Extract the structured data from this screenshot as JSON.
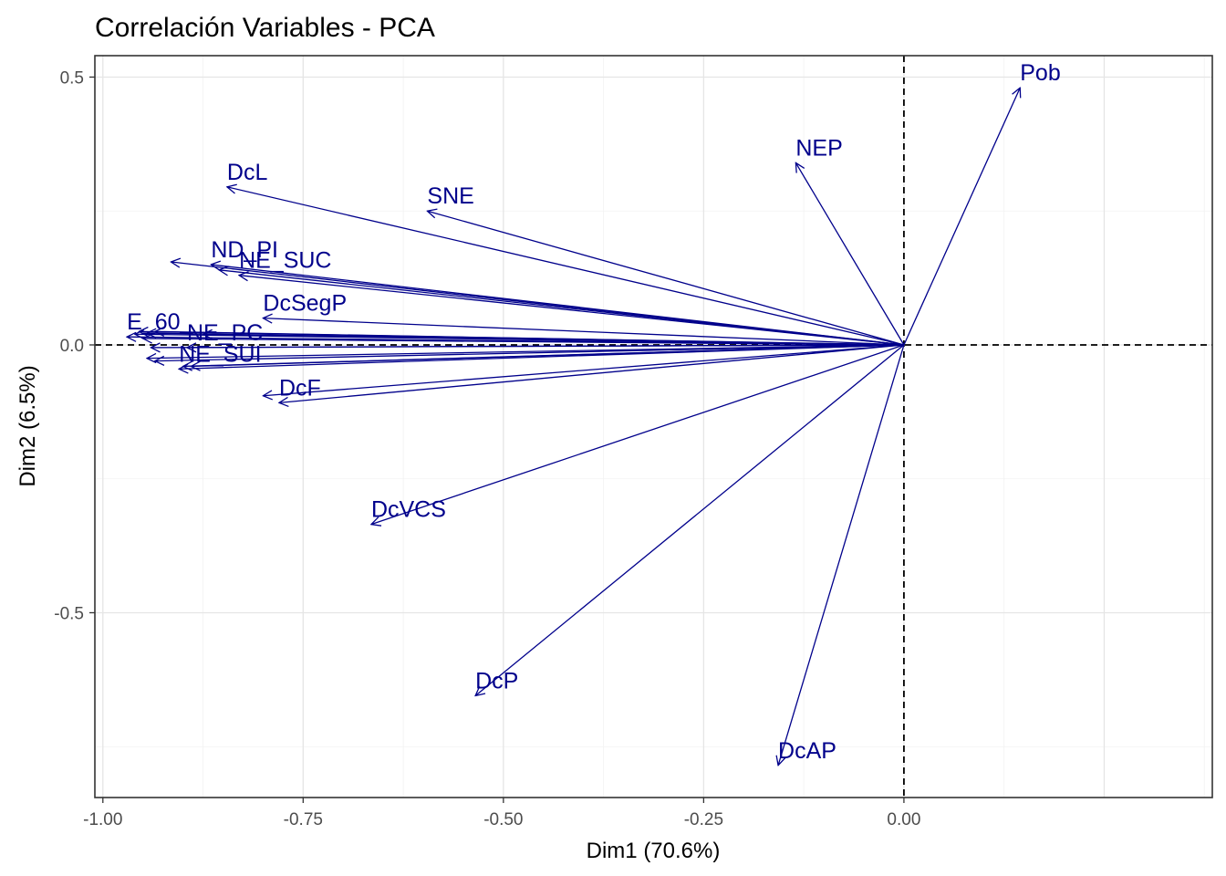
{
  "chart_data": {
    "type": "scatter",
    "title": "Correlación Variables - PCA",
    "xlabel": "Dim1 (70.6%)",
    "ylabel": "Dim2 (6.5%)",
    "xlim": [
      -1.01,
      0.385
    ],
    "ylim": [
      -0.845,
      0.54
    ],
    "x_ticks": [
      -1.0,
      -0.75,
      -0.5,
      -0.25,
      0.0
    ],
    "x_tick_labels": [
      "-1.00",
      "-0.75",
      "-0.50",
      "-0.25",
      "0.00"
    ],
    "y_ticks": [
      -0.5,
      0.0,
      0.5
    ],
    "y_tick_labels": [
      "-0.5",
      "0.0",
      "0.5"
    ],
    "grid": true,
    "reference_lines": {
      "x": 0,
      "y": 0,
      "style": "dashed"
    },
    "color": "#00008b",
    "variables": [
      {
        "name": "Pob",
        "x": 0.145,
        "y": 0.48,
        "label": "Pob"
      },
      {
        "name": "NEP",
        "x": -0.135,
        "y": 0.34,
        "label": "NEP"
      },
      {
        "name": "DcL",
        "x": -0.845,
        "y": 0.295,
        "label": "DcL"
      },
      {
        "name": "SNE",
        "x": -0.595,
        "y": 0.25,
        "label": "SNE"
      },
      {
        "name": "ND_PI",
        "x": -0.865,
        "y": 0.15,
        "label": "ND_PI"
      },
      {
        "name": "v_unl1",
        "x": -0.915,
        "y": 0.155,
        "label": ""
      },
      {
        "name": "NE_SUC",
        "x": -0.83,
        "y": 0.13,
        "label": "NE_SUC"
      },
      {
        "name": "v_unl2",
        "x": -0.855,
        "y": 0.14,
        "label": ""
      },
      {
        "name": "DcSegP",
        "x": -0.8,
        "y": 0.05,
        "label": "DcSegP"
      },
      {
        "name": "E_60_",
        "x": -0.97,
        "y": 0.015,
        "label": "E_60_"
      },
      {
        "name": "v_unl3",
        "x": -0.96,
        "y": 0.02,
        "label": ""
      },
      {
        "name": "v_unl4",
        "x": -0.955,
        "y": 0.025,
        "label": ""
      },
      {
        "name": "v_unl5",
        "x": -0.945,
        "y": 0.022,
        "label": ""
      },
      {
        "name": "v_unl6",
        "x": -0.935,
        "y": 0.025,
        "label": ""
      },
      {
        "name": "v_unl7",
        "x": -0.875,
        "y": 0.02,
        "label": ""
      },
      {
        "name": "v_unl8",
        "x": -0.95,
        "y": 0.012,
        "label": ""
      },
      {
        "name": "NE_PC",
        "x": -0.895,
        "y": -0.005,
        "label": "NE_PC"
      },
      {
        "name": "v_unl9",
        "x": -0.94,
        "y": -0.005,
        "label": ""
      },
      {
        "name": "v_unl10",
        "x": -0.945,
        "y": -0.025,
        "label": ""
      },
      {
        "name": "v_unl11",
        "x": -0.935,
        "y": -0.03,
        "label": ""
      },
      {
        "name": "NE_SUI",
        "x": -0.905,
        "y": -0.045,
        "label": "NE_SUI"
      },
      {
        "name": "v_unl12",
        "x": -0.9,
        "y": -0.04,
        "label": ""
      },
      {
        "name": "v_unl13",
        "x": -0.89,
        "y": -0.04,
        "label": ""
      },
      {
        "name": "DcF",
        "x": -0.78,
        "y": -0.108,
        "label": "DcF"
      },
      {
        "name": "v_unl14",
        "x": -0.8,
        "y": -0.095,
        "label": ""
      },
      {
        "name": "DcVCS",
        "x": -0.665,
        "y": -0.335,
        "label": "DcVCS"
      },
      {
        "name": "DcP",
        "x": -0.535,
        "y": -0.655,
        "label": "DcP"
      },
      {
        "name": "DcAP",
        "x": -0.157,
        "y": -0.785,
        "label": "DcAP"
      }
    ]
  }
}
